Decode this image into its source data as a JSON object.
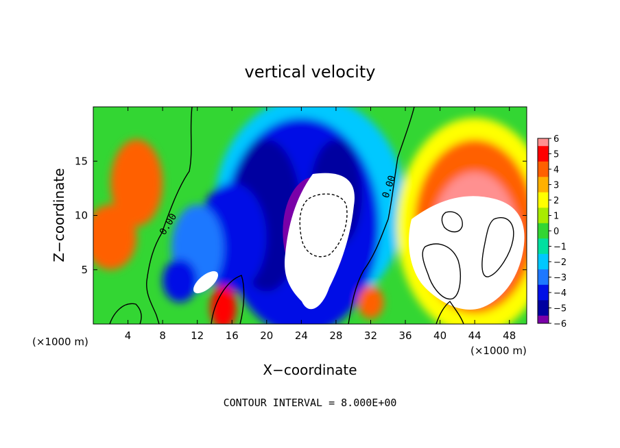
{
  "chart_data": {
    "type": "heatmap",
    "title": "vertical velocity",
    "xlabel": "X−coordinate",
    "ylabel": "Z−coordinate",
    "x_unit": "(×1000 m)",
    "xlim": [
      0,
      50
    ],
    "ylim": [
      0,
      20
    ],
    "x_ticks": [
      "4",
      "8",
      "12",
      "16",
      "20",
      "24",
      "28",
      "32",
      "36",
      "40",
      "44",
      "48"
    ],
    "y_ticks": [
      "5",
      "10",
      "15"
    ],
    "colorbar": {
      "range": [
        -6,
        6
      ],
      "labels": [
        "6",
        "5",
        "4",
        "3",
        "2",
        "1",
        "0",
        "−1",
        "−2",
        "−3",
        "−4",
        "−5",
        "−6"
      ]
    },
    "contour_labels": [
      "0.00",
      "0.00"
    ],
    "contour_interval_text": "CONTOUR INTERVAL = 8.000E+00",
    "features": [
      {
        "kind": "updraft",
        "x": 4.5,
        "z": 13,
        "w": 4.5
      },
      {
        "kind": "updraft",
        "x": 2,
        "z": 8,
        "w": 4
      },
      {
        "kind": "downdraft_core",
        "x": 24,
        "z": 8,
        "w": -12
      },
      {
        "kind": "downdraft",
        "x": 18,
        "z": 11,
        "w": -5
      },
      {
        "kind": "updraft_core",
        "x": 44,
        "z": 7,
        "w": 12
      },
      {
        "kind": "updraft",
        "x": 44,
        "z": 12,
        "w": 4.5
      }
    ]
  }
}
